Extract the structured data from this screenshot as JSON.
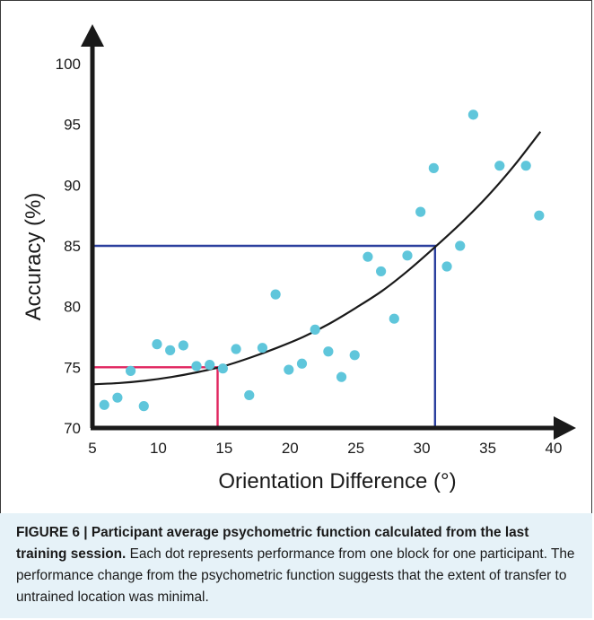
{
  "chart_data": {
    "type": "scatter",
    "xlabel": "Orientation Difference (°)",
    "ylabel": "Accuracy (%)",
    "xlim": [
      5,
      40
    ],
    "ylim": [
      70,
      100
    ],
    "xticks": [
      "5",
      "10",
      "15",
      "20",
      "25",
      "30",
      "35",
      "40"
    ],
    "yticks": [
      "70",
      "75",
      "80",
      "85",
      "90",
      "95",
      "100"
    ],
    "grid": false,
    "points": [
      {
        "x": 5.9,
        "y": 71.9
      },
      {
        "x": 6.9,
        "y": 72.5
      },
      {
        "x": 7.9,
        "y": 74.7
      },
      {
        "x": 8.9,
        "y": 71.8
      },
      {
        "x": 9.9,
        "y": 76.9
      },
      {
        "x": 10.9,
        "y": 76.4
      },
      {
        "x": 11.9,
        "y": 76.8
      },
      {
        "x": 12.9,
        "y": 75.1
      },
      {
        "x": 13.9,
        "y": 75.2
      },
      {
        "x": 14.9,
        "y": 74.9
      },
      {
        "x": 15.9,
        "y": 76.5
      },
      {
        "x": 16.9,
        "y": 72.7
      },
      {
        "x": 17.9,
        "y": 76.6
      },
      {
        "x": 18.9,
        "y": 81.0
      },
      {
        "x": 19.9,
        "y": 74.8
      },
      {
        "x": 20.9,
        "y": 75.3
      },
      {
        "x": 21.9,
        "y": 78.1
      },
      {
        "x": 22.9,
        "y": 76.3
      },
      {
        "x": 23.9,
        "y": 74.2
      },
      {
        "x": 24.9,
        "y": 76.0
      },
      {
        "x": 25.9,
        "y": 84.1
      },
      {
        "x": 26.9,
        "y": 82.9
      },
      {
        "x": 27.9,
        "y": 79.0
      },
      {
        "x": 28.9,
        "y": 84.2
      },
      {
        "x": 29.9,
        "y": 87.8
      },
      {
        "x": 30.9,
        "y": 91.4
      },
      {
        "x": 31.9,
        "y": 83.3
      },
      {
        "x": 32.9,
        "y": 85.0
      },
      {
        "x": 33.9,
        "y": 95.8
      },
      {
        "x": 35.9,
        "y": 91.6
      },
      {
        "x": 37.9,
        "y": 91.6
      },
      {
        "x": 38.9,
        "y": 87.5
      }
    ],
    "fit_curve": [
      {
        "x": 5,
        "y": 73.6
      },
      {
        "x": 7,
        "y": 73.7
      },
      {
        "x": 9,
        "y": 73.9
      },
      {
        "x": 11,
        "y": 74.2
      },
      {
        "x": 13,
        "y": 74.6
      },
      {
        "x": 15,
        "y": 75.1
      },
      {
        "x": 17,
        "y": 75.8
      },
      {
        "x": 19,
        "y": 76.6
      },
      {
        "x": 21,
        "y": 77.5
      },
      {
        "x": 23,
        "y": 78.6
      },
      {
        "x": 25,
        "y": 79.9
      },
      {
        "x": 27,
        "y": 81.3
      },
      {
        "x": 29,
        "y": 83.0
      },
      {
        "x": 31,
        "y": 84.9
      },
      {
        "x": 33,
        "y": 86.9
      },
      {
        "x": 35,
        "y": 89.1
      },
      {
        "x": 37,
        "y": 91.6
      },
      {
        "x": 39,
        "y": 94.4
      }
    ],
    "reference_lines": [
      {
        "x": 14.5,
        "y": 75,
        "color": "#e0245e"
      },
      {
        "x": 31,
        "y": 85,
        "color": "#2b3f9e"
      }
    ],
    "colors": {
      "point": "#5fc6db",
      "curve": "#1a1a1a",
      "axis": "#1a1a1a"
    }
  },
  "caption": {
    "label": "FIGURE 6 | Participant average psychometric function calculated from the last training session.",
    "text": " Each dot represents performance from one block for one participant. The performance change from the psychometric function suggests that the extent of transfer to untrained location was minimal."
  }
}
